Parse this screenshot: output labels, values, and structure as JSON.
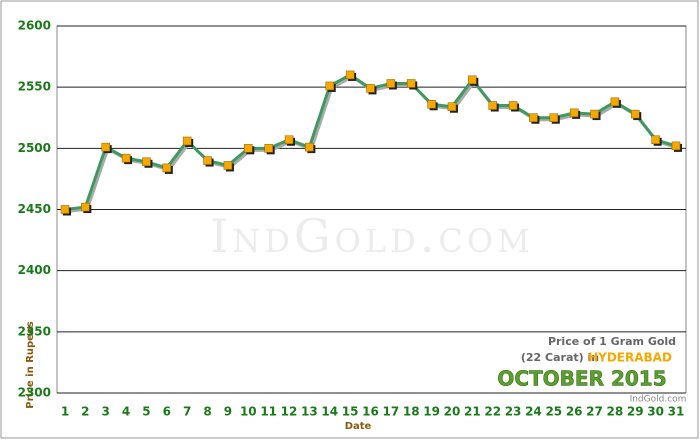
{
  "chart_data": {
    "type": "line",
    "xlabel": "Date",
    "ylabel": "Price in Rupees",
    "categories": [
      "1",
      "2",
      "3",
      "4",
      "5",
      "6",
      "7",
      "8",
      "9",
      "10",
      "11",
      "12",
      "13",
      "14",
      "15",
      "16",
      "17",
      "18",
      "19",
      "20",
      "21",
      "22",
      "23",
      "24",
      "25",
      "26",
      "27",
      "28",
      "29",
      "30",
      "31"
    ],
    "values": [
      2450,
      2452,
      2501,
      2492,
      2489,
      2484,
      2506,
      2490,
      2486,
      2500,
      2500,
      2507,
      2501,
      2551,
      2560,
      2549,
      2553,
      2553,
      2536,
      2534,
      2556,
      2535,
      2535,
      2525,
      2525,
      2529,
      2528,
      2538,
      2528,
      2507,
      2502
    ],
    "color": "#3f9a5f",
    "marker_color": "#f5a800",
    "ylim": [
      2300,
      2600
    ],
    "yticks": [
      2300,
      2350,
      2400,
      2450,
      2500,
      2550,
      2600
    ],
    "grid": true,
    "watermark": "IndGold.com",
    "annotation": {
      "line1": "Price of 1 Gram Gold",
      "line2": "(22 Carat) in",
      "city": "HYDERABAD",
      "period": "OCTOBER 2015"
    },
    "source": "IndGold.com"
  }
}
